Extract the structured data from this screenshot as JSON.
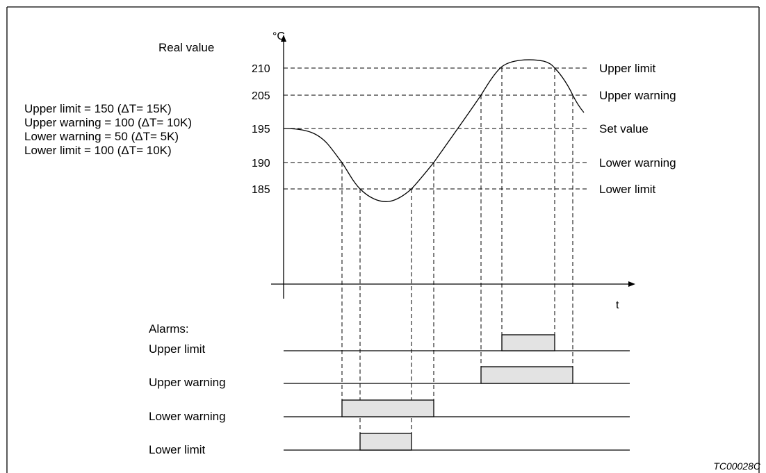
{
  "diagram": {
    "real_value_label": "Real value",
    "y_unit": "°C",
    "x_unit": "t",
    "figure_code": "TC00028C",
    "settings": [
      "Upper limit = 150 (ΔT= 15K)",
      "Upper warning = 100 (ΔT= 10K)",
      "Lower warning = 50 (ΔT= 5K)",
      "Lower limit = 100 (ΔT= 10K)"
    ],
    "levels": [
      {
        "tick": "210",
        "label": "Upper limit"
      },
      {
        "tick": "205",
        "label": "Upper warning"
      },
      {
        "tick": "195",
        "label": "Set value"
      },
      {
        "tick": "190",
        "label": "Lower warning"
      },
      {
        "tick": "185",
        "label": "Lower  limit"
      }
    ],
    "alarms_title": "Alarms:",
    "alarm_rows": [
      {
        "label": "Upper limit"
      },
      {
        "label": "Upper warning"
      },
      {
        "label": "Lower warning"
      },
      {
        "label": "Lower limit"
      }
    ]
  }
}
